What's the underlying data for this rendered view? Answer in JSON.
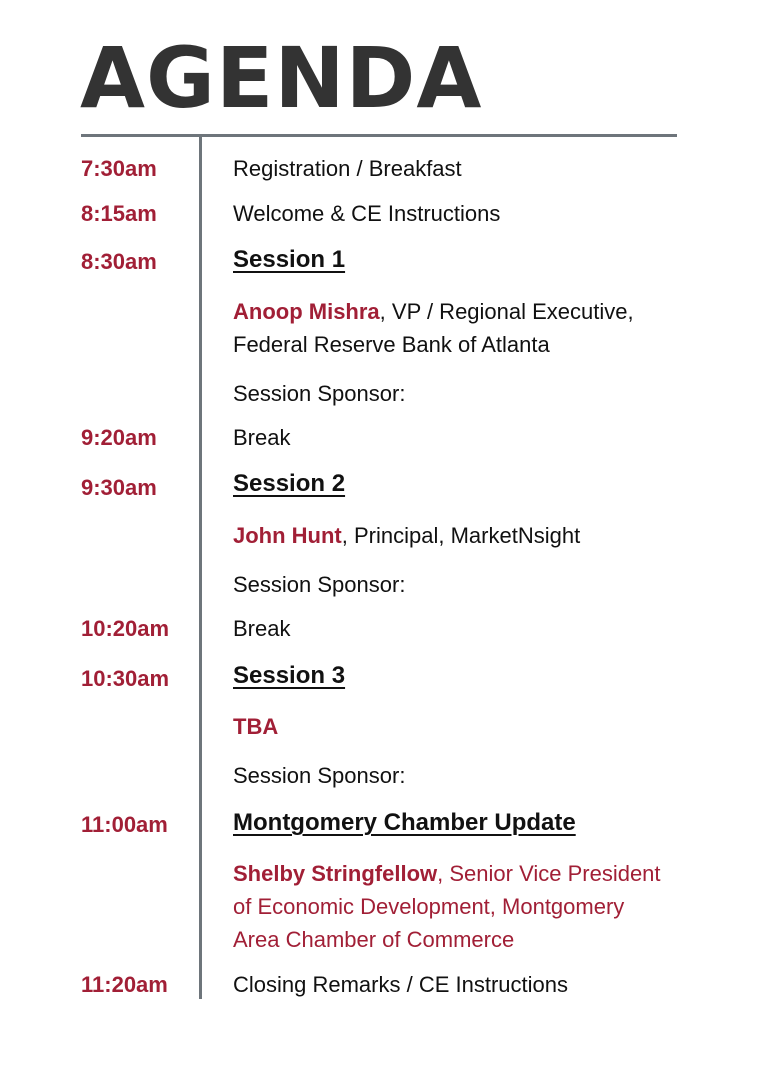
{
  "title": "AGENDA",
  "items": [
    {
      "time": "7:30am",
      "text": "Registration / Breakfast"
    },
    {
      "time": "8:15am",
      "text": "Welcome & CE Instructions"
    },
    {
      "time": "8:30am",
      "heading": "Session 1",
      "speaker_name": "Anoop Mishra",
      "speaker_line1": ", VP / Regional Executive,",
      "speaker_line2": "Federal Reserve Bank of Atlanta",
      "sponsor": "Session Sponsor:"
    },
    {
      "time": "9:20am",
      "text": "Break"
    },
    {
      "time": "9:30am",
      "heading": "Session 2",
      "speaker_name": "John Hunt",
      "speaker_line1": ", Principal, MarketNsight",
      "sponsor": "Session Sponsor:"
    },
    {
      "time": "10:20am",
      "text": "Break"
    },
    {
      "time": "10:30am",
      "heading": "Session 3",
      "speaker_name": "TBA",
      "sponsor": "Session Sponsor:"
    },
    {
      "time": "11:00am",
      "heading": "Montgomery Chamber Update",
      "speaker_name": "Shelby Stringfellow",
      "speaker_line1": ", Senior Vice President",
      "speaker_line2": "of Economic Development, Montgomery",
      "speaker_line3": "Area Chamber of Commerce"
    },
    {
      "time": "11:20am",
      "text": "Closing Remarks / CE Instructions"
    }
  ]
}
